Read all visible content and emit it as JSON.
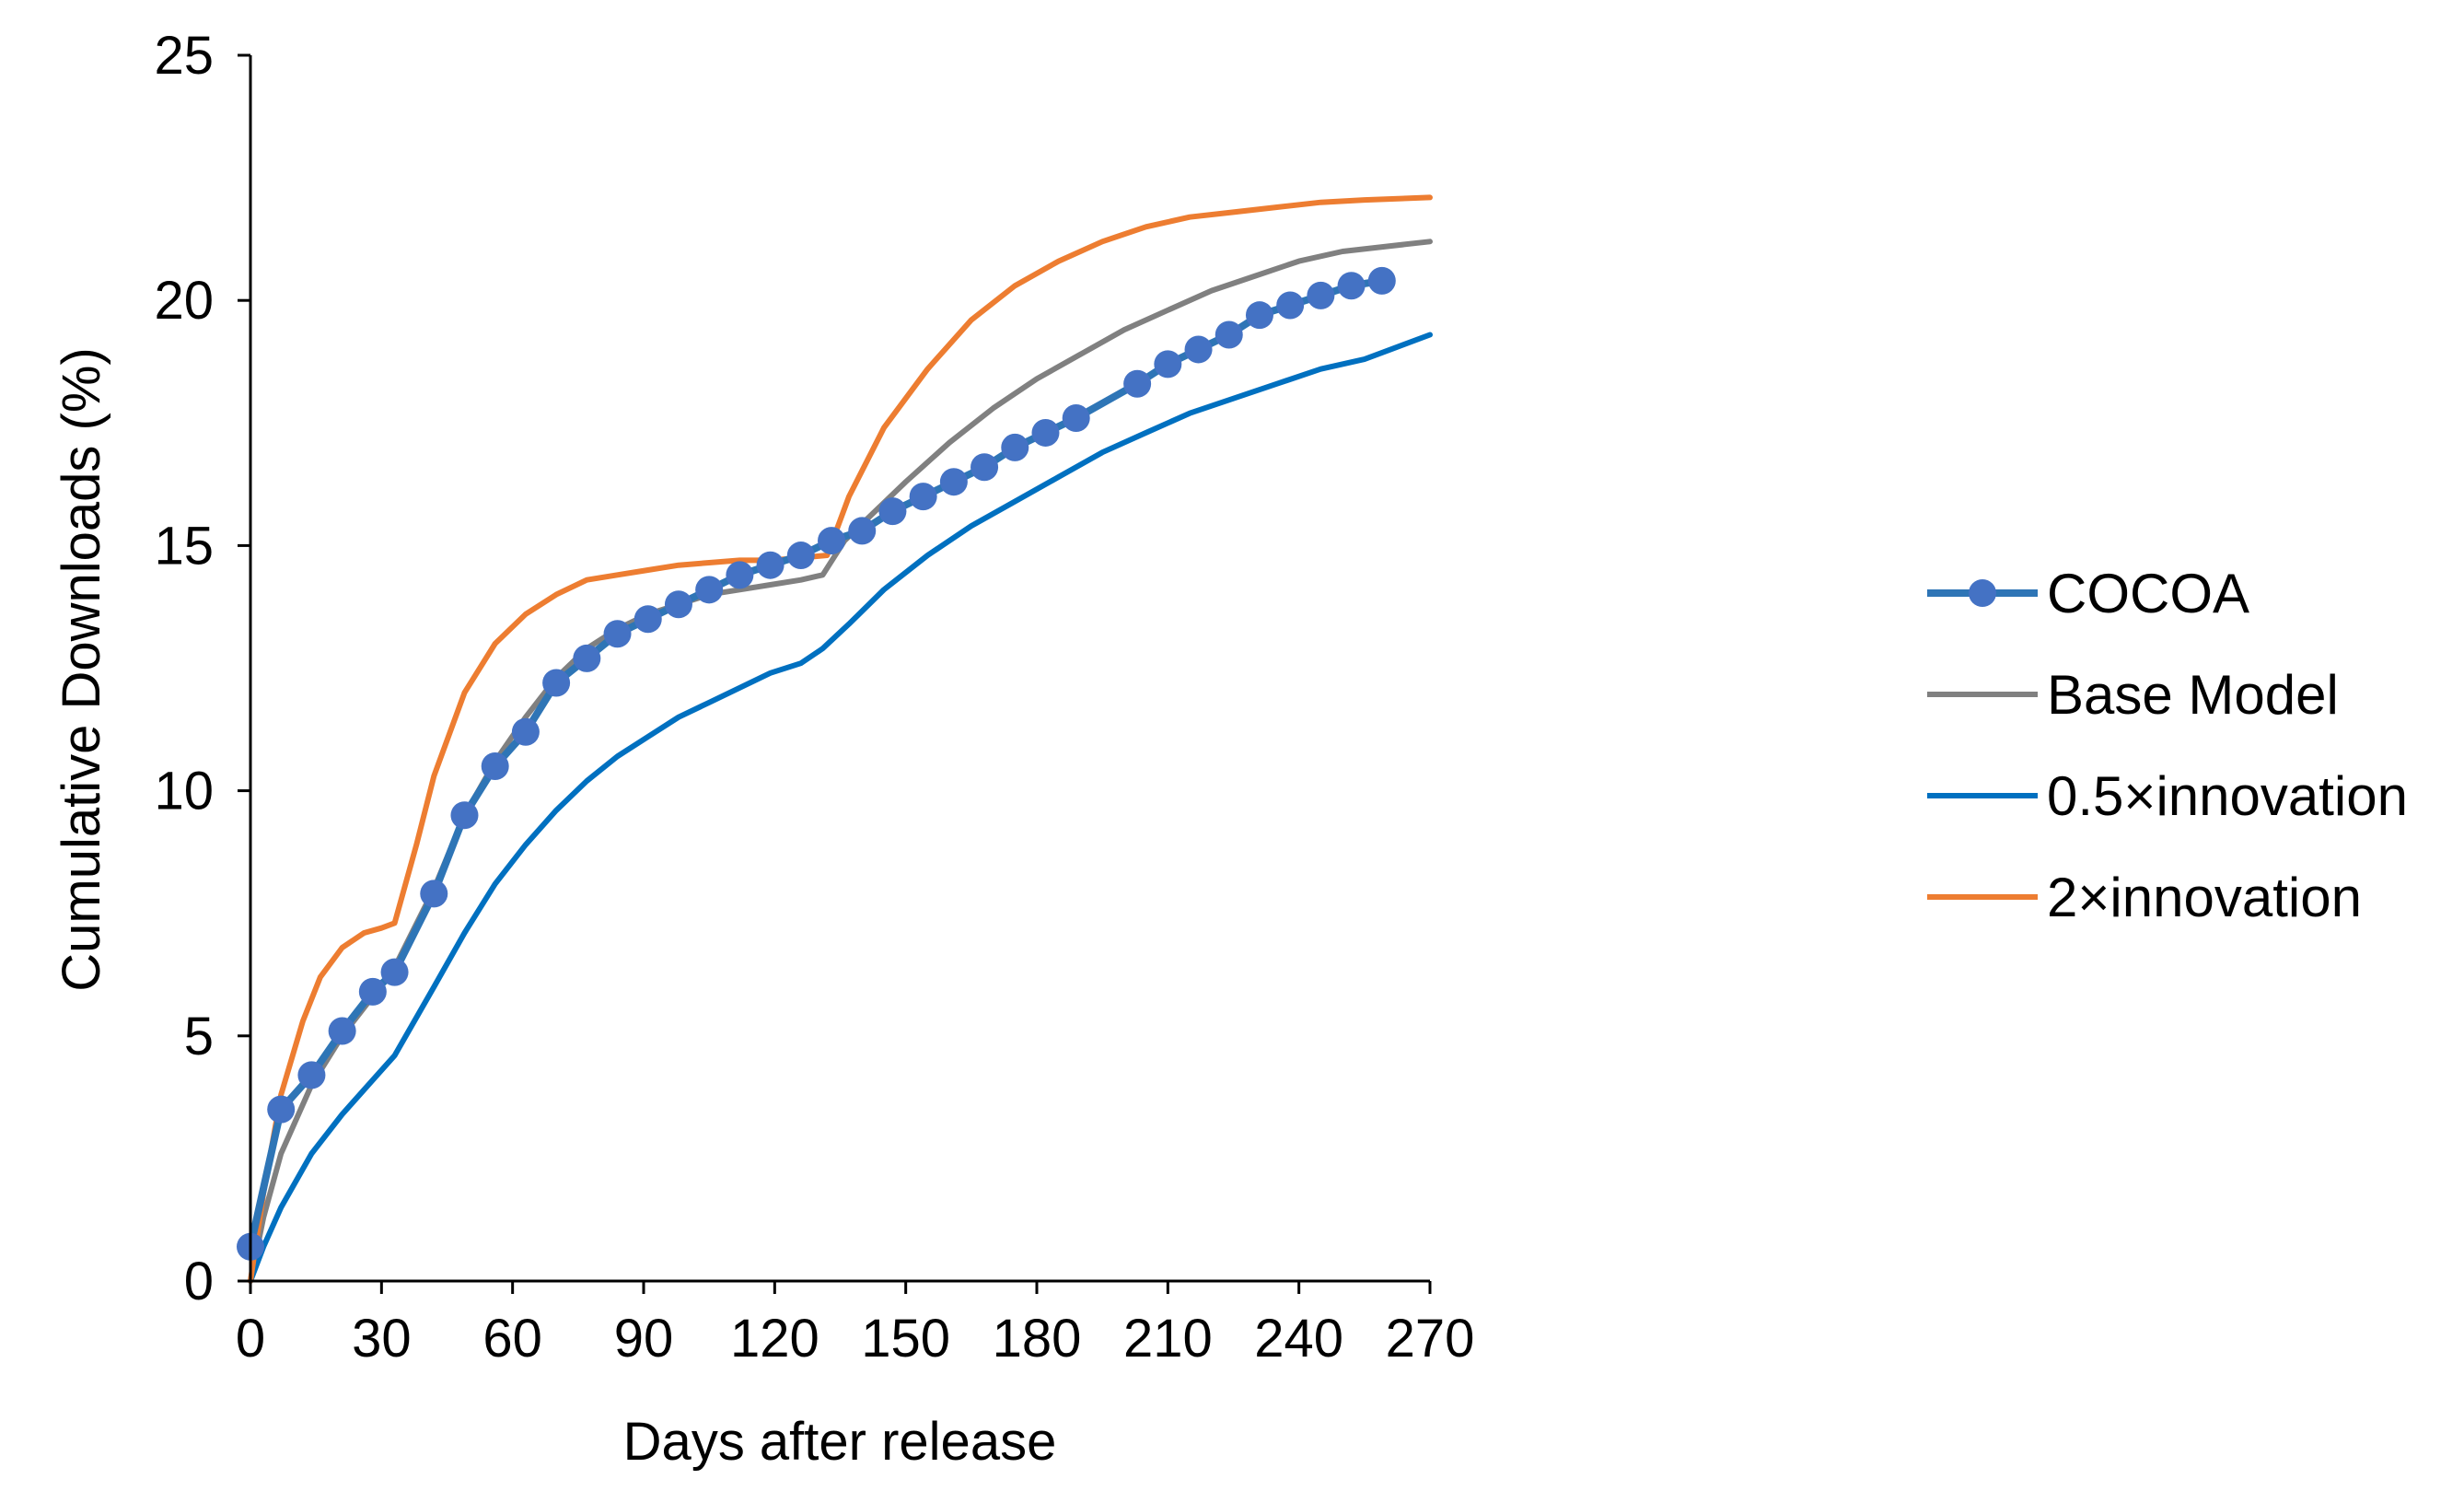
{
  "chart_data": {
    "type": "line",
    "title": "",
    "xlabel": "Days after release",
    "ylabel": "Cumulative Downloads (%)",
    "xlim": [
      0,
      270
    ],
    "ylim": [
      0,
      25
    ],
    "xticks": [
      0,
      30,
      60,
      90,
      120,
      150,
      180,
      210,
      240,
      270
    ],
    "yticks": [
      0,
      5,
      10,
      15,
      20,
      25
    ],
    "grid": false,
    "legend_position": "right",
    "series": [
      {
        "name": "COCOA",
        "color": "#4472C4",
        "line_color": "#2E75B6",
        "markers": true,
        "x": [
          0,
          7,
          14,
          21,
          28,
          33,
          42,
          49,
          56,
          63,
          70,
          77,
          84,
          91,
          98,
          105,
          112,
          119,
          126,
          133,
          140,
          147,
          154,
          161,
          168,
          175,
          182,
          189,
          203,
          210,
          217,
          224,
          231,
          238,
          245,
          252,
          259
        ],
        "y": [
          0.7,
          3.5,
          4.2,
          5.1,
          5.9,
          6.3,
          7.9,
          9.5,
          10.5,
          11.2,
          12.2,
          12.7,
          13.2,
          13.5,
          13.8,
          14.1,
          14.4,
          14.6,
          14.8,
          15.1,
          15.3,
          15.7,
          16.0,
          16.3,
          16.6,
          17.0,
          17.3,
          17.6,
          18.3,
          18.7,
          19.0,
          19.3,
          19.7,
          19.9,
          20.1,
          20.3,
          20.4
        ]
      },
      {
        "name": "Base Model",
        "color": "#808080",
        "markers": false,
        "x": [
          0,
          3,
          7,
          14,
          21,
          28,
          33,
          42,
          49,
          56,
          63,
          70,
          77,
          84,
          91,
          98,
          105,
          112,
          119,
          126,
          131,
          136,
          143,
          150,
          160,
          170,
          180,
          190,
          200,
          210,
          220,
          230,
          240,
          250,
          260,
          270
        ],
        "y": [
          0,
          1.3,
          2.6,
          4.0,
          5.0,
          5.8,
          6.4,
          8.0,
          9.5,
          10.6,
          11.5,
          12.3,
          12.9,
          13.3,
          13.6,
          13.8,
          14.0,
          14.1,
          14.2,
          14.3,
          14.4,
          15.1,
          15.7,
          16.3,
          17.1,
          17.8,
          18.4,
          18.9,
          19.4,
          19.8,
          20.2,
          20.5,
          20.8,
          21.0,
          21.1,
          21.2
        ]
      },
      {
        "name": "0.5×innovation",
        "color": "#0070C0",
        "markers": false,
        "x": [
          0,
          3,
          7,
          14,
          21,
          28,
          33,
          42,
          49,
          56,
          63,
          70,
          77,
          84,
          91,
          98,
          105,
          112,
          119,
          126,
          131,
          137,
          145,
          155,
          165,
          175,
          185,
          195,
          205,
          215,
          225,
          235,
          245,
          255,
          270
        ],
        "y": [
          0,
          0.7,
          1.5,
          2.6,
          3.4,
          4.1,
          4.6,
          6.0,
          7.1,
          8.1,
          8.9,
          9.6,
          10.2,
          10.7,
          11.1,
          11.5,
          11.8,
          12.1,
          12.4,
          12.6,
          12.9,
          13.4,
          14.1,
          14.8,
          15.4,
          15.9,
          16.4,
          16.9,
          17.3,
          17.7,
          18.0,
          18.3,
          18.6,
          18.8,
          19.3
        ]
      },
      {
        "name": "2×innovation",
        "color": "#ED7D31",
        "markers": false,
        "x": [
          0,
          3,
          7,
          12,
          16,
          21,
          26,
          30,
          33,
          38,
          42,
          49,
          56,
          63,
          70,
          77,
          84,
          91,
          98,
          105,
          112,
          119,
          126,
          132,
          137,
          145,
          155,
          165,
          175,
          185,
          195,
          205,
          215,
          225,
          235,
          245,
          255,
          270
        ],
        "y": [
          0,
          1.8,
          3.8,
          5.3,
          6.2,
          6.8,
          7.1,
          7.2,
          7.3,
          8.9,
          10.3,
          12.0,
          13.0,
          13.6,
          14.0,
          14.3,
          14.4,
          14.5,
          14.6,
          14.65,
          14.7,
          14.7,
          14.75,
          14.8,
          16.0,
          17.4,
          18.6,
          19.6,
          20.3,
          20.8,
          21.2,
          21.5,
          21.7,
          21.8,
          21.9,
          22.0,
          22.05,
          22.1
        ]
      }
    ]
  }
}
